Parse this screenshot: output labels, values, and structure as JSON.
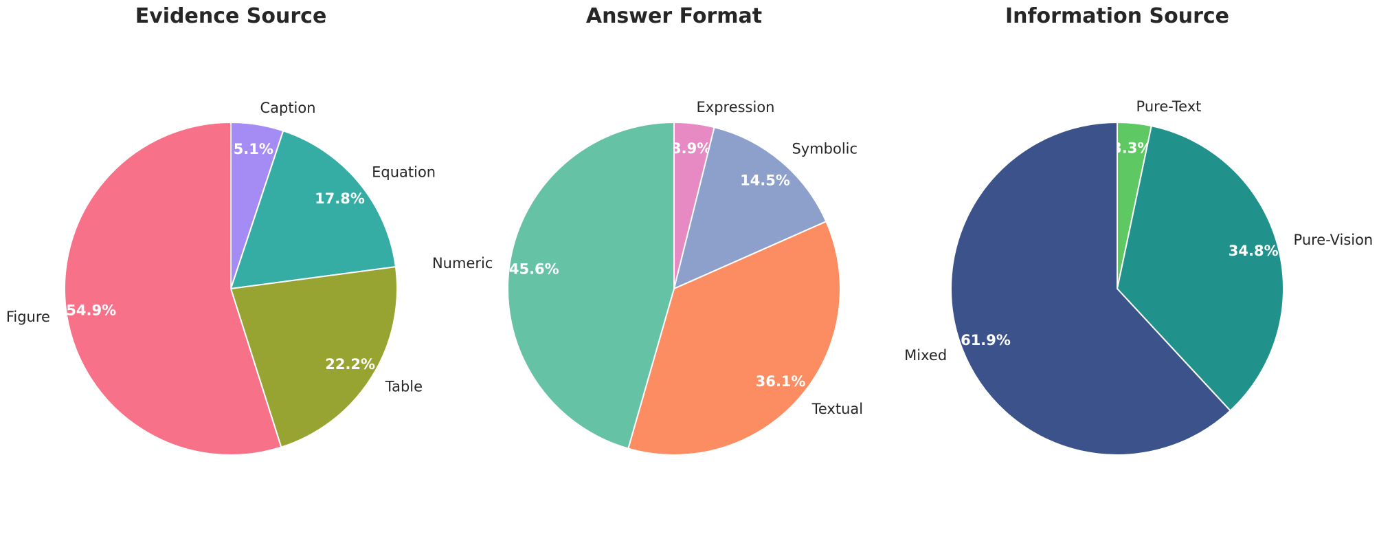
{
  "chart_data": [
    {
      "type": "pie",
      "title": "Evidence Source",
      "start_angle_deg": 90,
      "direction": "clockwise",
      "slices": [
        {
          "label": "Caption",
          "value": 5.1,
          "pct_label": "5.1%",
          "color": "#a48cf4"
        },
        {
          "label": "Equation",
          "value": 17.8,
          "pct_label": "17.8%",
          "color": "#36ada4"
        },
        {
          "label": "Table",
          "value": 22.2,
          "pct_label": "22.2%",
          "color": "#97a431"
        },
        {
          "label": "Figure",
          "value": 54.9,
          "pct_label": "54.9%",
          "color": "#f77189"
        }
      ]
    },
    {
      "type": "pie",
      "title": "Answer Format",
      "start_angle_deg": 90,
      "direction": "clockwise",
      "slices": [
        {
          "label": "Expression",
          "value": 3.9,
          "pct_label": "3.9%",
          "color": "#e78ac3"
        },
        {
          "label": "Symbolic",
          "value": 14.5,
          "pct_label": "14.5%",
          "color": "#8da0cb"
        },
        {
          "label": "Textual",
          "value": 36.1,
          "pct_label": "36.1%",
          "color": "#fc8d62"
        },
        {
          "label": "Numeric",
          "value": 45.6,
          "pct_label": "45.6%",
          "color": "#66c2a5"
        }
      ]
    },
    {
      "type": "pie",
      "title": "Information Source",
      "start_angle_deg": 90,
      "direction": "clockwise",
      "slices": [
        {
          "label": "Pure-Text",
          "value": 3.3,
          "pct_label": "3.3%",
          "color": "#5ec962"
        },
        {
          "label": "Pure-Vision",
          "value": 34.8,
          "pct_label": "34.8%",
          "color": "#21918c"
        },
        {
          "label": "Mixed",
          "value": 61.9,
          "pct_label": "61.9%",
          "color": "#3b528b"
        }
      ]
    }
  ]
}
